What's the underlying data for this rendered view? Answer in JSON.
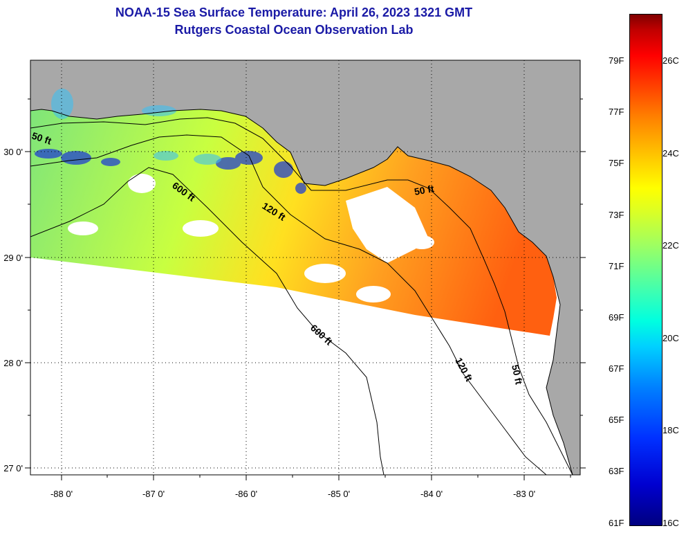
{
  "title": "NOAA-15 Sea Surface Temperature:  April 26, 2023 1321 GMT",
  "subtitle": "Rutgers Coastal Ocean Observation Lab",
  "lon_labels": [
    "-88 0'",
    "-87 0'",
    "-86 0'",
    "-85 0'",
    "-84 0'",
    "-83 0'"
  ],
  "lat_labels": [
    "30 0'",
    "29 0'",
    "28 0'",
    "27 0'"
  ],
  "contours": {
    "c50": "50 ft",
    "c120": "120 ft",
    "c600": "600 ft"
  },
  "colorbar": {
    "fahrenheit": [
      "79F",
      "77F",
      "75F",
      "73F",
      "71F",
      "69F",
      "67F",
      "65F",
      "63F",
      "61F"
    ],
    "celsius": [
      "26C",
      "24C",
      "22C",
      "20C",
      "18C",
      "16C"
    ]
  },
  "colors": {
    "land": "#a8a8a8",
    "title": "#1a1aa6",
    "water_nodata": "#ffffff"
  }
}
